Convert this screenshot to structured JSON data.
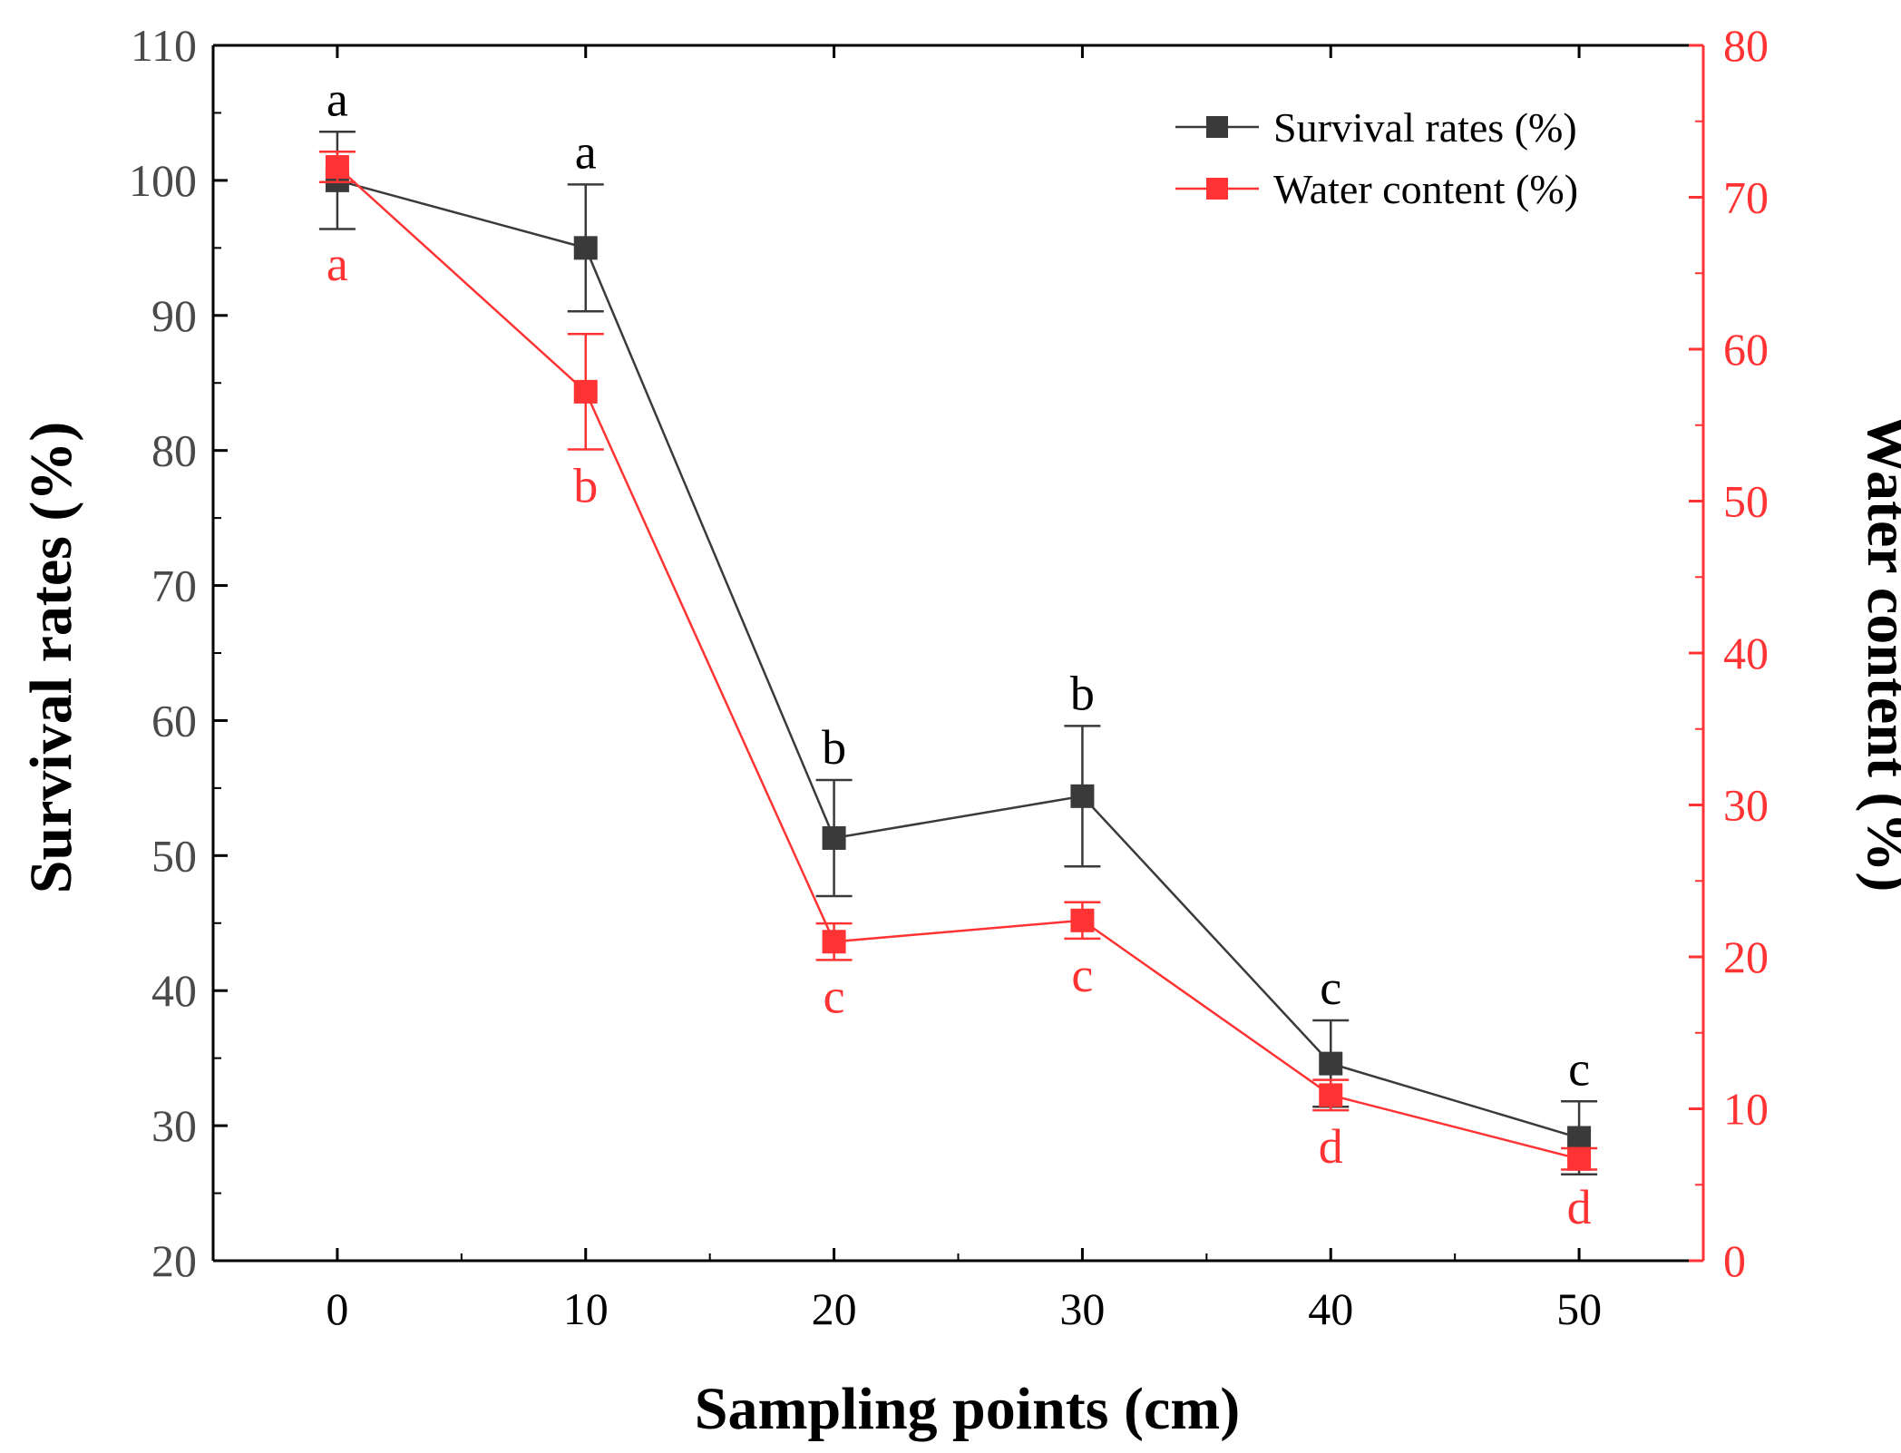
{
  "chart_data": {
    "type": "line",
    "xlabel": "Sampling points (cm)",
    "ylabel_left": "Survival rates (%)",
    "ylabel_right": "Water content (%)",
    "x": [
      0,
      10,
      20,
      30,
      40,
      50
    ],
    "x_ticks": [
      "0",
      "10",
      "20",
      "30",
      "40",
      "50"
    ],
    "xlim": [
      -5,
      55
    ],
    "ylim_left": [
      20,
      110
    ],
    "ylim_right": [
      0,
      80
    ],
    "y_ticks_left": [
      "20",
      "30",
      "40",
      "50",
      "60",
      "70",
      "80",
      "90",
      "100",
      "110"
    ],
    "y_ticks_right": [
      "0",
      "10",
      "20",
      "30",
      "40",
      "50",
      "60",
      "70",
      "80"
    ],
    "legend_position": "top-right",
    "series": [
      {
        "name": "Survival rates (%)",
        "axis": "left",
        "color": "#3a3a3a",
        "values": [
          100,
          95,
          51.3,
          54.4,
          34.6,
          29.1
        ],
        "error": [
          3.6,
          4.7,
          4.3,
          5.2,
          3.2,
          2.7
        ],
        "significance": [
          "a",
          "a",
          "b",
          "b",
          "c",
          "c"
        ]
      },
      {
        "name": "Water content (%)",
        "axis": "right",
        "color": "#ff3333",
        "values": [
          72,
          57.2,
          21,
          22.4,
          10.9,
          6.7
        ],
        "error": [
          1.0,
          3.8,
          1.2,
          1.2,
          1.0,
          0.7
        ],
        "significance": [
          "a",
          "b",
          "c",
          "c",
          "d",
          "d"
        ]
      }
    ]
  },
  "colors": {
    "left_axis_text": "#4a4a4a",
    "right_axis": "#ff3333",
    "frame": "#000000"
  }
}
